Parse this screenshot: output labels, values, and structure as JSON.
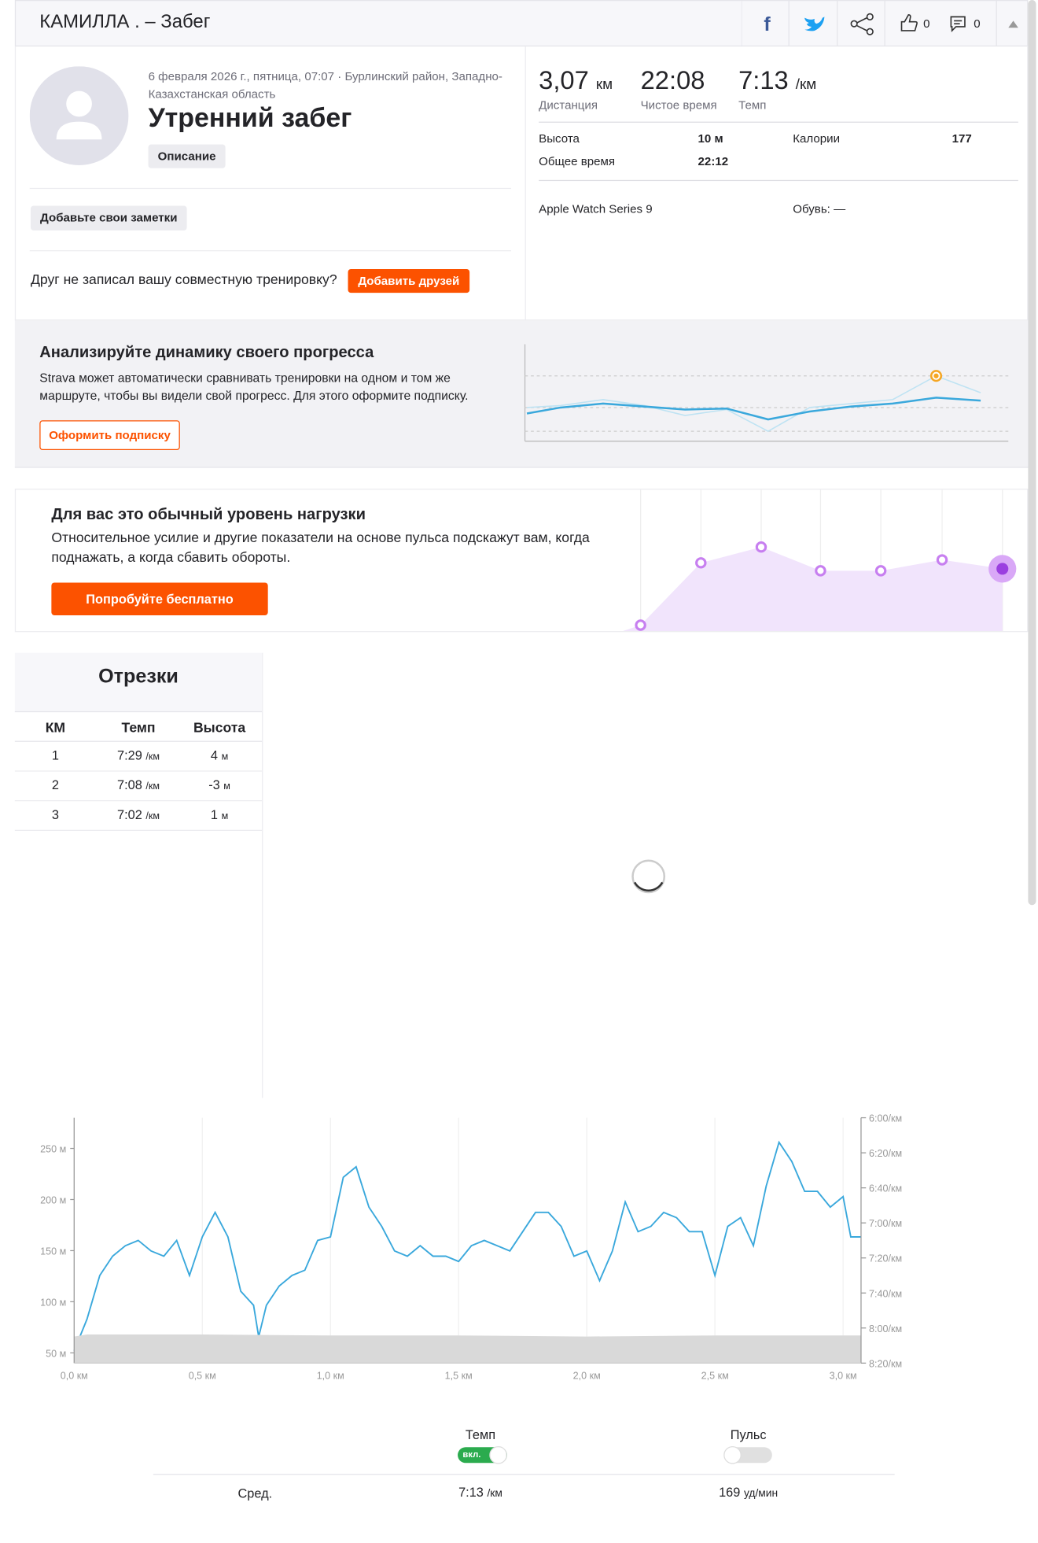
{
  "header": {
    "title": "КАМИЛЛА . – Забег",
    "kudos": "0",
    "comments": "0"
  },
  "activity": {
    "date_location": "6 февраля 2026 г., пятница, 07:07 · Бурлинский район, Западно-Казахстанская область",
    "name": "Утренний забег",
    "description_button": "Описание",
    "notes_button": "Добавьте свои заметки",
    "friends_prompt": "Друг не записал вашу совместную тренировку?",
    "friends_button": "Добавить друзей"
  },
  "stats": {
    "primary": [
      {
        "value": "3,07",
        "unit": "км",
        "label": "Дистанция"
      },
      {
        "value": "22:08",
        "label": "Чистое время"
      },
      {
        "value": "7:13",
        "unit": "/км",
        "label": "Темп"
      }
    ],
    "details": [
      {
        "label": "Высота",
        "value": "10 м"
      },
      {
        "label": "Калории",
        "value": "177"
      },
      {
        "label": "Общее время",
        "value": "22:12"
      }
    ],
    "device": "Apple Watch Series 9",
    "shoes": "Обувь: —"
  },
  "promo_progress": {
    "title": "Анализируйте динамику своего прогресса",
    "text": "Strava может автоматически сравнивать тренировки на одном и том же маршруте, чтобы вы видели свой прогресс. Для этого оформите подписку.",
    "button": "Оформить подписку"
  },
  "promo_effort": {
    "title": "Для вас это обычный уровень нагрузки",
    "text": "Относительное усилие и другие показатели на основе пульса подскажут вам, когда поднажать, а когда сбавить обороты.",
    "button": "Попробуйте бесплатно"
  },
  "splits": {
    "title": "Отрезки",
    "columns": [
      "КМ",
      "Темп",
      "Высота"
    ],
    "rows": [
      {
        "km": "1",
        "pace": "7:29",
        "pace_unit": "/км",
        "elev": "4",
        "elev_unit": "м"
      },
      {
        "km": "2",
        "pace": "7:08",
        "pace_unit": "/км",
        "elev": "-3",
        "elev_unit": "м"
      },
      {
        "km": "3",
        "pace": "7:02",
        "pace_unit": "/км",
        "elev": "1",
        "elev_unit": "м"
      }
    ]
  },
  "chart_data": {
    "type": "line",
    "x": [
      0,
      0.05,
      0.1,
      0.15,
      0.2,
      0.25,
      0.3,
      0.35,
      0.4,
      0.45,
      0.5,
      0.55,
      0.6,
      0.65,
      0.7,
      0.72,
      0.75,
      0.8,
      0.85,
      0.9,
      0.95,
      1.0,
      1.05,
      1.1,
      1.15,
      1.2,
      1.25,
      1.3,
      1.35,
      1.4,
      1.45,
      1.5,
      1.55,
      1.6,
      1.65,
      1.7,
      1.75,
      1.8,
      1.85,
      1.9,
      1.95,
      2.0,
      2.05,
      2.1,
      2.15,
      2.2,
      2.25,
      2.3,
      2.35,
      2.4,
      2.45,
      2.5,
      2.55,
      2.6,
      2.65,
      2.7,
      2.75,
      2.8,
      2.85,
      2.9,
      2.95,
      3.0,
      3.03,
      3.07
    ],
    "series": [
      {
        "name": "Темп",
        "color": "#3aa8dc",
        "axis": "y2",
        "values": [
          493,
          475,
          450,
          439,
          433,
          430,
          436,
          439,
          430,
          450,
          428,
          414,
          428,
          459,
          467,
          485,
          467,
          456,
          450,
          447,
          430,
          428,
          394,
          388,
          411,
          422,
          436,
          439,
          433,
          439,
          439,
          442,
          433,
          430,
          433,
          436,
          425,
          414,
          414,
          422,
          439,
          436,
          453,
          436,
          408,
          425,
          422,
          414,
          417,
          425,
          425,
          450,
          422,
          417,
          433,
          399,
          374,
          385,
          402,
          402,
          411,
          405,
          428,
          428
        ]
      },
      {
        "type": "area",
        "color": "#d9d9d9",
        "x": [
          0,
          0.05,
          0.5,
          1.0,
          1.5,
          2.0,
          2.5,
          3.0,
          3.07
        ],
        "values": [
          66,
          68,
          68,
          67,
          67,
          66,
          67,
          67,
          67
        ]
      }
    ],
    "xlim": [
      0,
      3.07
    ],
    "xticks": [
      {
        "value": 0,
        "label": "0,0 км"
      },
      {
        "value": 0.5,
        "label": "0,5 км"
      },
      {
        "value": 1,
        "label": "1,0 км"
      },
      {
        "value": 1.5,
        "label": "1,5 км"
      },
      {
        "value": 2,
        "label": "2,0 км"
      },
      {
        "value": 2.5,
        "label": "2,5 км"
      },
      {
        "value": 3,
        "label": "3,0 км"
      }
    ],
    "ylim": [
      40,
      280
    ],
    "yticks": [
      {
        "value": 50,
        "label": "50 м"
      },
      {
        "value": 100,
        "label": "100 м"
      },
      {
        "value": 150,
        "label": "150 м"
      },
      {
        "value": 200,
        "label": "200 м"
      },
      {
        "value": 250,
        "label": "250 м"
      }
    ],
    "y2lim": [
      360,
      500
    ],
    "y2_inverted": true,
    "y2ticks": [
      {
        "value": 360,
        "label": "6:00/км"
      },
      {
        "value": 380,
        "label": "6:20/км"
      },
      {
        "value": 400,
        "label": "6:40/км"
      },
      {
        "value": 420,
        "label": "7:00/км"
      },
      {
        "value": 440,
        "label": "7:20/км"
      },
      {
        "value": 460,
        "label": "7:40/км"
      },
      {
        "value": 480,
        "label": "8:00/км"
      },
      {
        "value": 500,
        "label": "8:20/км"
      }
    ],
    "grid": true
  },
  "chart_controls": {
    "pace_label": "Темп",
    "pace_toggle": "вкл.",
    "hr_label": "Пульс",
    "avg_label": "Сред.",
    "avg_pace": "7:13",
    "avg_pace_unit": "/км",
    "avg_hr": "169",
    "avg_hr_unit": "уд/мин"
  }
}
